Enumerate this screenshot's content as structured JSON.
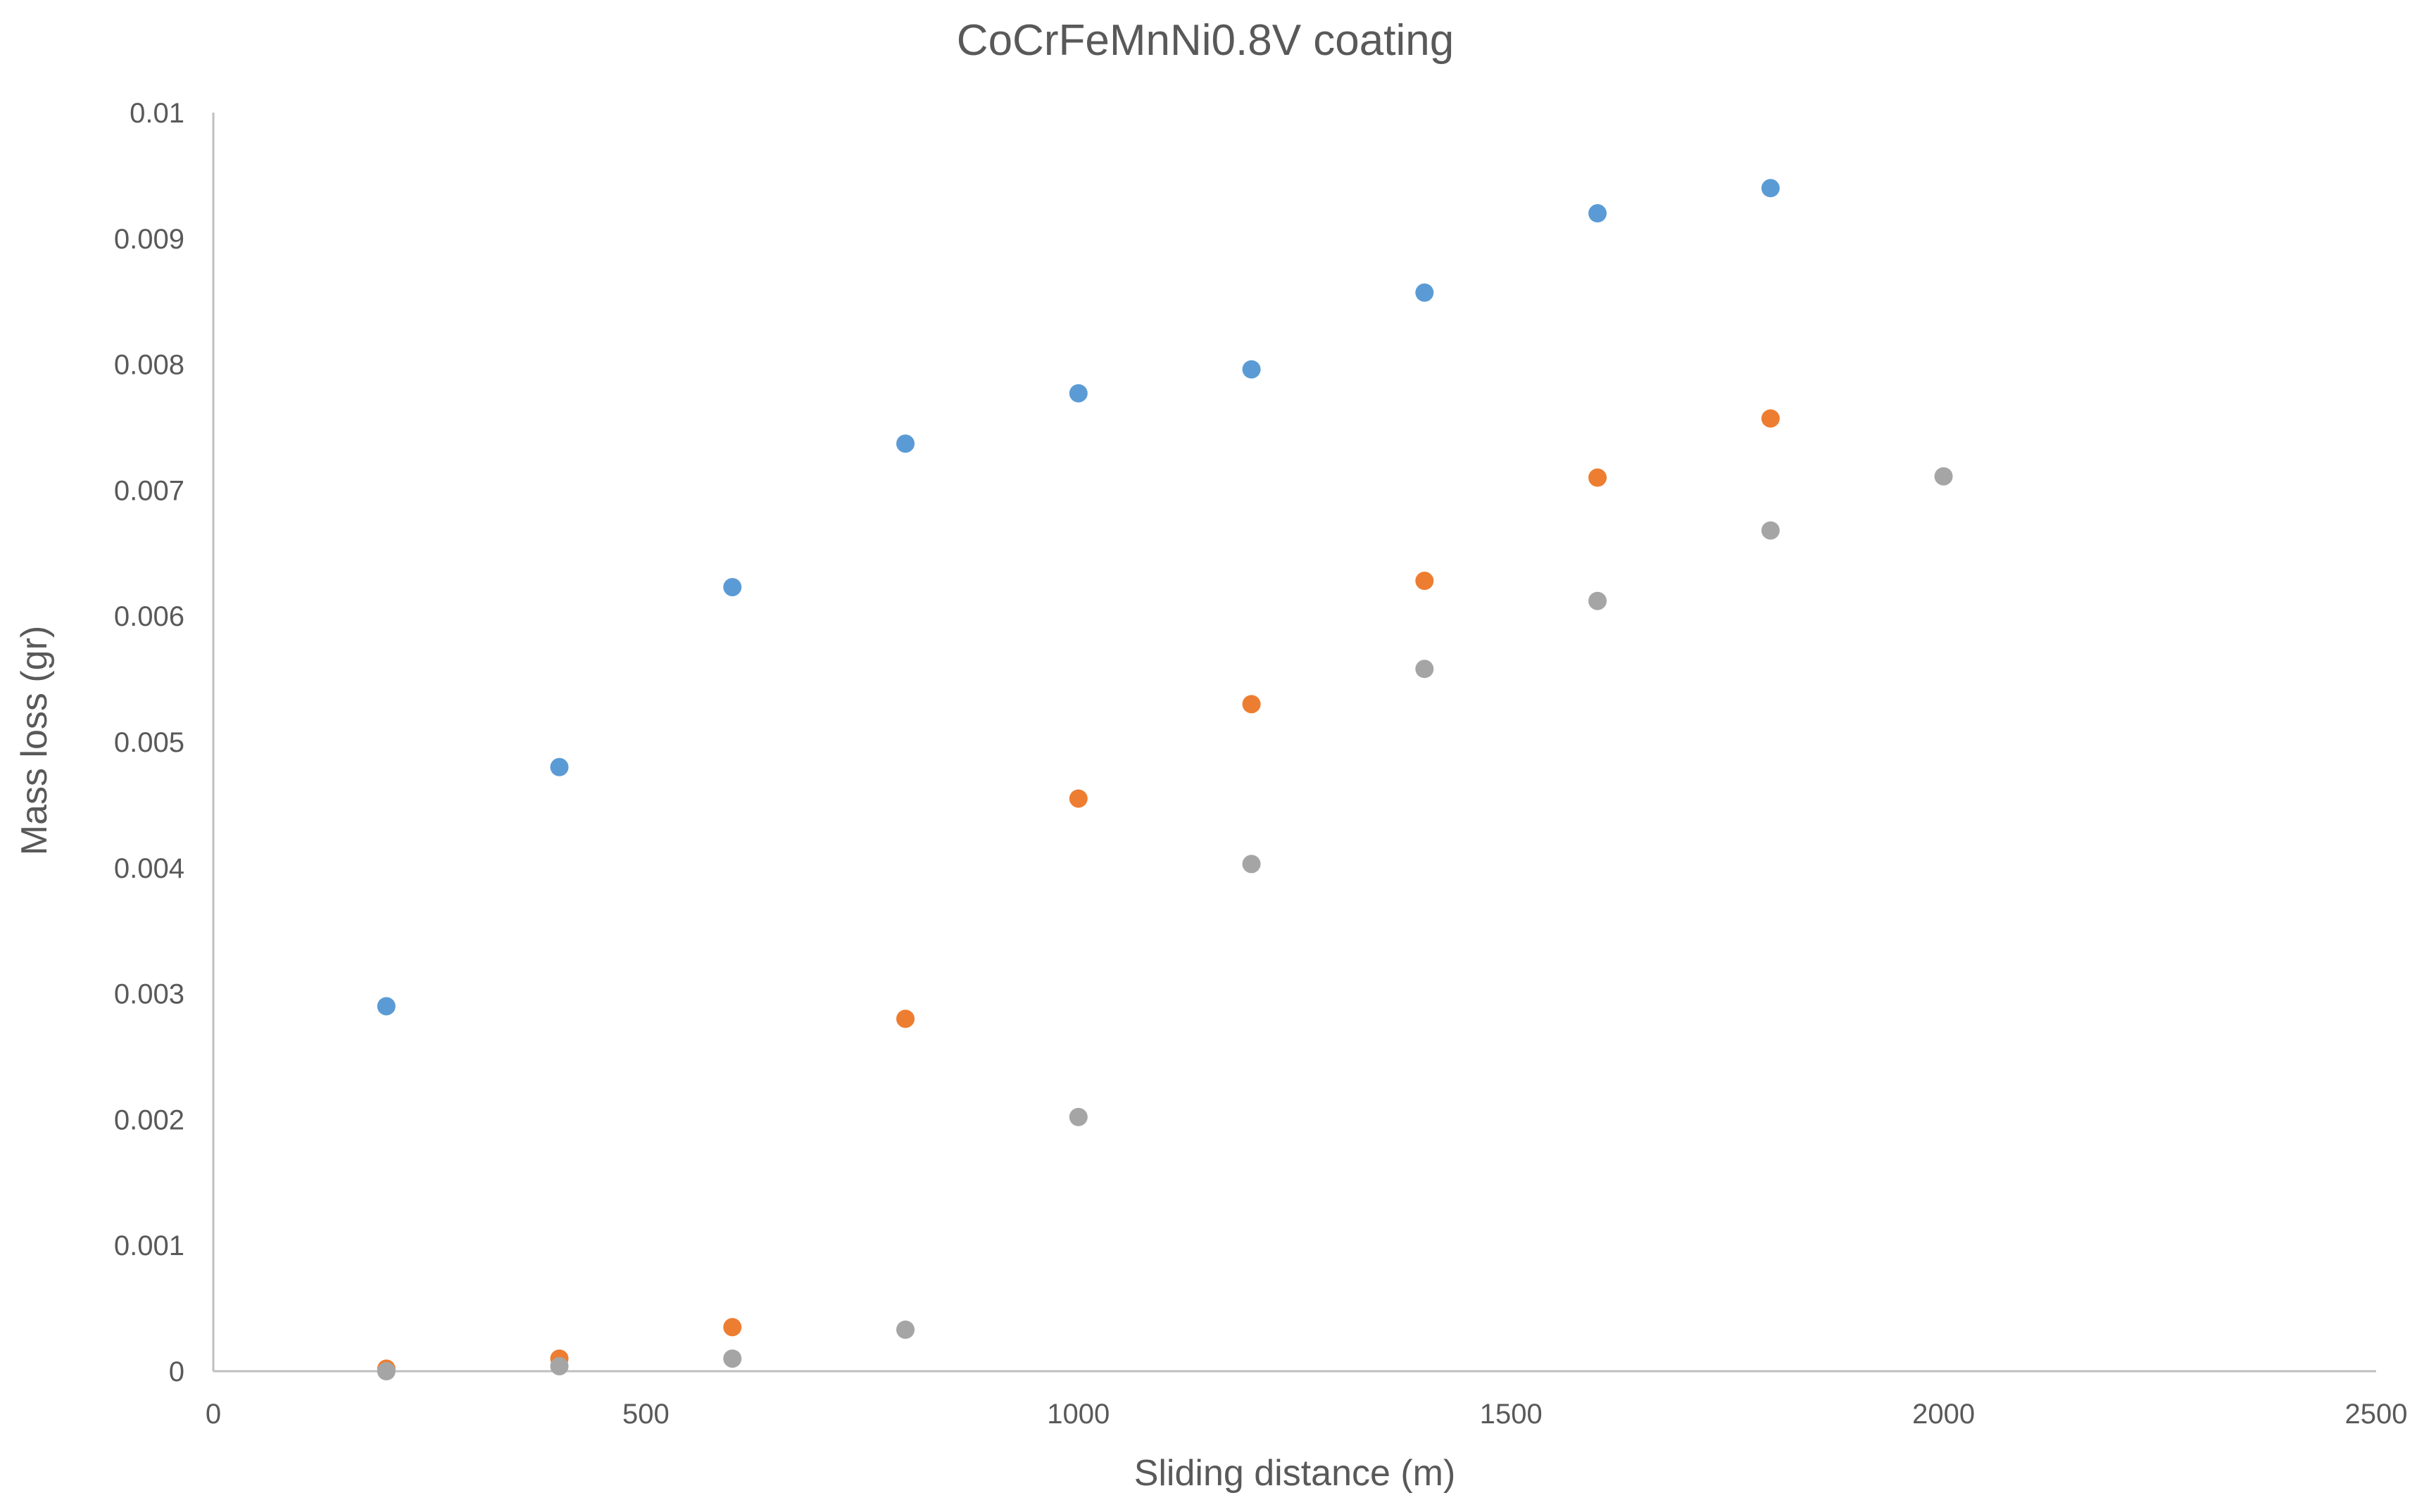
{
  "chart_data": {
    "type": "scatter",
    "title": "CoCrFeMnNi0.8V coating",
    "xlabel": "Sliding distance (m)",
    "ylabel": "Mass loss (gr)",
    "xlim": [
      0,
      2500
    ],
    "ylim": [
      0,
      0.01
    ],
    "xticks": [
      0,
      500,
      1000,
      1500,
      2000,
      2500
    ],
    "xtick_labels": [
      "0",
      "500",
      "1000",
      "1500",
      "2000",
      "2500"
    ],
    "yticks": [
      0,
      0.001,
      0.002,
      0.003,
      0.004,
      0.005,
      0.006,
      0.007,
      0.008,
      0.009,
      0.01
    ],
    "ytick_labels": [
      "0",
      "0.001",
      "0.002",
      "0.003",
      "0.004",
      "0.005",
      "0.006",
      "0.007",
      "0.008",
      "0.009",
      "0.01"
    ],
    "grid": false,
    "legend": "none",
    "series": [
      {
        "color": "#5B9BD5",
        "x": [
          200,
          400,
          600,
          800,
          1000,
          1200,
          1400,
          1600,
          1800
        ],
        "y": [
          0.0029,
          0.0048,
          0.00623,
          0.00737,
          0.00777,
          0.00796,
          0.00857,
          0.0092,
          0.0094
        ]
      },
      {
        "color": "#ED7D31",
        "x": [
          200,
          400,
          600,
          800,
          1000,
          1200,
          1400,
          1600,
          1800
        ],
        "y": [
          2e-05,
          0.0001,
          0.00035,
          0.0028,
          0.00455,
          0.0053,
          0.00628,
          0.0071,
          0.00757
        ]
      },
      {
        "color": "#A5A5A5",
        "x": [
          200,
          400,
          600,
          800,
          1000,
          1200,
          1400,
          1600,
          1800,
          2000
        ],
        "y": [
          0.0,
          4e-05,
          0.0001,
          0.00033,
          0.00202,
          0.00403,
          0.00558,
          0.00612,
          0.00668,
          0.00711
        ]
      }
    ]
  }
}
